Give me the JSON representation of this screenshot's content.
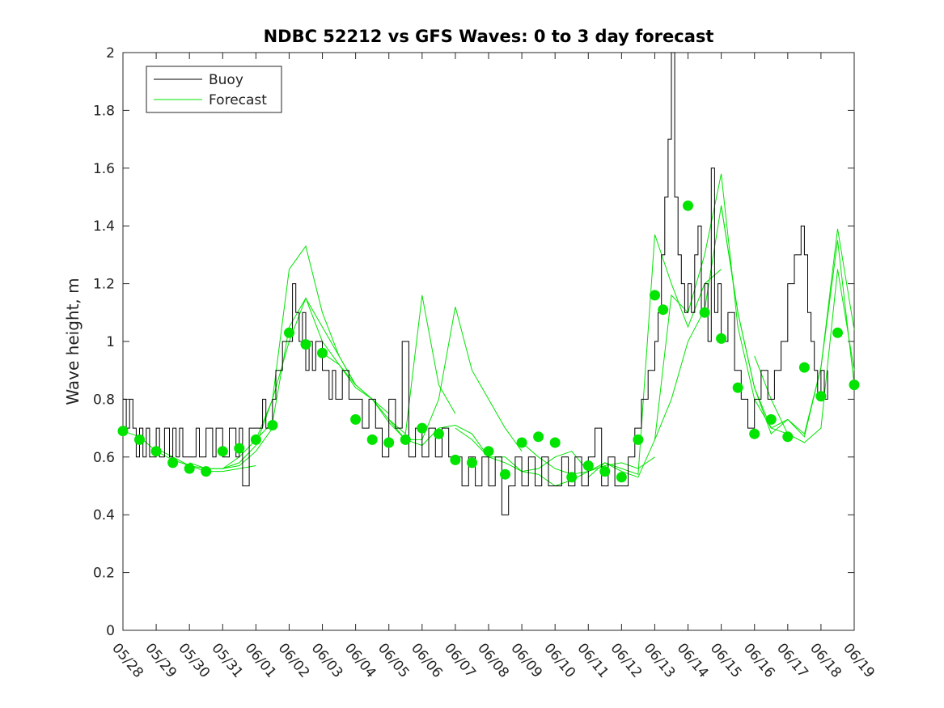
{
  "chart_data": {
    "type": "line",
    "title": "NDBC 52212 vs GFS Waves: 0 to 3 day forecast",
    "xlabel": "",
    "ylabel": "Wave height, m",
    "x_tick_labels": [
      "05/28",
      "05/29",
      "05/30",
      "05/31",
      "06/01",
      "06/02",
      "06/03",
      "06/04",
      "06/05",
      "06/06",
      "06/07",
      "06/08",
      "06/09",
      "06/10",
      "06/11",
      "06/12",
      "06/13",
      "06/14",
      "06/15",
      "06/16",
      "06/17",
      "06/18",
      "06/19"
    ],
    "xlim": [
      0,
      22
    ],
    "ylim": [
      0,
      2
    ],
    "y_ticks": [
      "0",
      "0.2",
      "0.4",
      "0.6",
      "0.8",
      "1",
      "1.2",
      "1.4",
      "1.6",
      "1.8",
      "2"
    ],
    "grid": false,
    "legend": {
      "position": "top-left",
      "entries": [
        "Buoy",
        "Forecast"
      ]
    },
    "colors": {
      "buoy": "#000000",
      "forecast": "#00e400",
      "markers": "#00e400"
    },
    "series": [
      {
        "name": "Buoy",
        "x": [
          0,
          0.1,
          0.2,
          0.3,
          0.4,
          0.5,
          0.6,
          0.7,
          0.8,
          1.0,
          1.1,
          1.25,
          1.4,
          1.5,
          1.6,
          1.7,
          1.8,
          2.0,
          2.2,
          2.3,
          2.5,
          2.7,
          2.8,
          3.0,
          3.2,
          3.4,
          3.5,
          3.6,
          3.8,
          4.0,
          4.2,
          4.3,
          4.5,
          4.6,
          4.8,
          5.0,
          5.1,
          5.2,
          5.3,
          5.4,
          5.5,
          5.6,
          5.7,
          5.8,
          6.0,
          6.2,
          6.3,
          6.4,
          6.5,
          6.6,
          6.8,
          7.0,
          7.2,
          7.4,
          7.6,
          7.8,
          8.0,
          8.2,
          8.4,
          8.6,
          8.8,
          9.0,
          9.2,
          9.4,
          9.6,
          9.8,
          10.0,
          10.2,
          10.4,
          10.6,
          10.8,
          11.0,
          11.2,
          11.4,
          11.6,
          11.8,
          12.0,
          12.2,
          12.4,
          12.6,
          12.8,
          13.0,
          13.2,
          13.4,
          13.6,
          13.8,
          14.0,
          14.2,
          14.4,
          14.6,
          14.8,
          15.0,
          15.2,
          15.4,
          15.6,
          15.8,
          16.0,
          16.1,
          16.2,
          16.3,
          16.4,
          16.5,
          16.6,
          16.7,
          16.8,
          16.9,
          17.0,
          17.1,
          17.2,
          17.3,
          17.4,
          17.5,
          17.6,
          17.7,
          17.8,
          17.9,
          18.0,
          18.2,
          18.4,
          18.6,
          18.8,
          19.0,
          19.2,
          19.4,
          19.6,
          19.8,
          20.0,
          20.2,
          20.4,
          20.5,
          20.6,
          20.7,
          20.8,
          20.9,
          21.0,
          21.1,
          21.2
        ],
        "values": [
          0.8,
          0.7,
          0.8,
          0.7,
          0.6,
          0.7,
          0.6,
          0.7,
          0.6,
          0.7,
          0.6,
          0.7,
          0.6,
          0.7,
          0.6,
          0.7,
          0.6,
          0.6,
          0.7,
          0.6,
          0.7,
          0.6,
          0.7,
          0.6,
          0.7,
          0.6,
          0.7,
          0.5,
          0.7,
          0.7,
          0.8,
          0.7,
          0.8,
          0.9,
          1.0,
          1.0,
          1.2,
          1.1,
          1.0,
          1.1,
          0.9,
          1.0,
          0.9,
          1.0,
          0.9,
          0.8,
          0.9,
          0.8,
          0.8,
          0.9,
          0.8,
          0.8,
          0.7,
          0.8,
          0.7,
          0.6,
          0.8,
          0.7,
          1.0,
          0.6,
          0.7,
          0.6,
          0.7,
          0.6,
          0.7,
          0.6,
          0.6,
          0.5,
          0.6,
          0.5,
          0.6,
          0.5,
          0.6,
          0.4,
          0.5,
          0.6,
          0.5,
          0.6,
          0.5,
          0.6,
          0.5,
          0.5,
          0.6,
          0.5,
          0.6,
          0.5,
          0.6,
          0.7,
          0.5,
          0.6,
          0.5,
          0.5,
          0.6,
          0.7,
          0.8,
          0.9,
          1.0,
          1.1,
          1.3,
          1.5,
          1.7,
          2.0,
          1.5,
          1.3,
          1.2,
          1.1,
          1.2,
          1.1,
          1.3,
          1.4,
          1.1,
          1.2,
          1.0,
          1.6,
          1.1,
          1.2,
          1.0,
          1.1,
          0.9,
          0.8,
          0.7,
          0.8,
          0.9,
          0.8,
          0.9,
          1.0,
          1.2,
          1.3,
          1.4,
          1.3,
          1.1,
          1.0,
          0.9,
          0.8,
          0.9,
          0.8,
          0.9
        ]
      },
      {
        "name": "Forecast",
        "runs": [
          {
            "x": [
              0,
              0.5,
              1,
              1.5,
              2,
              2.5,
              3,
              3.5,
              4
            ],
            "values": [
              0.69,
              0.67,
              0.62,
              0.59,
              0.57,
              0.55,
              0.55,
              0.56,
              0.57
            ]
          },
          {
            "x": [
              1,
              1.5,
              2,
              2.5,
              3,
              3.5,
              4,
              4.5
            ],
            "values": [
              0.63,
              0.6,
              0.57,
              0.56,
              0.56,
              0.57,
              0.62,
              0.7
            ]
          },
          {
            "x": [
              2,
              2.5,
              3,
              3.5,
              4,
              4.5,
              5,
              5.5,
              6,
              6.5,
              7
            ],
            "values": [
              0.58,
              0.56,
              0.56,
              0.6,
              0.66,
              0.8,
              1.0,
              1.15,
              1.05,
              0.95,
              0.85
            ]
          },
          {
            "x": [
              3,
              3.5,
              4,
              4.5,
              5,
              5.5,
              6,
              6.5,
              7,
              7.5,
              8
            ],
            "values": [
              0.56,
              0.58,
              0.64,
              0.8,
              1.25,
              1.33,
              1.1,
              0.95,
              0.85,
              0.8,
              0.75
            ]
          },
          {
            "x": [
              4,
              4.5,
              5,
              5.5,
              6,
              6.5,
              7,
              7.5,
              8,
              8.5,
              9,
              9.5,
              10
            ],
            "values": [
              0.66,
              0.72,
              1.05,
              1.15,
              1.0,
              0.92,
              0.85,
              0.8,
              0.73,
              0.68,
              1.16,
              0.85,
              0.75
            ]
          },
          {
            "x": [
              6,
              6.5,
              7,
              7.5,
              8,
              8.5,
              9,
              9.5,
              10,
              10.5,
              11,
              11.5,
              12
            ],
            "values": [
              0.96,
              0.92,
              0.84,
              0.8,
              0.72,
              0.66,
              0.66,
              0.8,
              1.12,
              0.9,
              0.8,
              0.7,
              0.62
            ]
          },
          {
            "x": [
              8,
              8.5,
              9,
              9.5,
              10,
              10.5,
              11,
              11.5,
              12,
              12.5,
              13,
              13.5,
              14
            ],
            "values": [
              0.73,
              0.66,
              0.64,
              0.7,
              0.71,
              0.68,
              0.6,
              0.58,
              0.55,
              0.56,
              0.6,
              0.62,
              0.55
            ]
          },
          {
            "x": [
              10,
              10.5,
              11,
              11.5,
              12,
              12.5,
              13,
              13.5,
              14,
              14.5,
              15,
              15.5,
              16
            ],
            "values": [
              0.7,
              0.66,
              0.6,
              0.6,
              0.55,
              0.54,
              0.5,
              0.52,
              0.55,
              0.57,
              0.58,
              0.56,
              0.6
            ]
          },
          {
            "x": [
              12,
              12.5,
              13,
              13.5,
              14,
              14.5,
              15,
              15.5,
              16,
              16.5,
              17,
              17.5,
              18
            ],
            "values": [
              0.65,
              0.6,
              0.56,
              0.54,
              0.55,
              0.58,
              0.56,
              0.54,
              1.37,
              1.2,
              1.05,
              1.2,
              1.25
            ]
          },
          {
            "x": [
              14,
              14.5,
              15,
              15.5,
              16,
              16.5,
              17,
              17.5,
              18,
              18.5,
              19,
              19.5,
              20
            ],
            "values": [
              0.53,
              0.58,
              0.55,
              0.53,
              0.66,
              1.16,
              1.1,
              1.3,
              1.58,
              1.05,
              0.8,
              0.7,
              0.68
            ]
          },
          {
            "x": [
              16,
              16.5,
              17,
              17.5,
              18,
              18.5,
              19,
              19.5,
              20,
              20.5,
              21,
              21.5,
              22
            ],
            "values": [
              0.66,
              0.8,
              1.0,
              1.11,
              1.47,
              1.1,
              0.84,
              0.7,
              0.73,
              0.68,
              0.91,
              1.39,
              1.04
            ]
          },
          {
            "x": [
              18,
              18.5,
              19,
              19.5,
              20,
              20.5,
              21,
              21.5,
              22
            ],
            "values": [
              1.47,
              1.1,
              0.84,
              0.68,
              0.73,
              0.67,
              0.91,
              1.35,
              0.85
            ]
          },
          {
            "x": [
              19,
              19.5,
              20,
              20.5,
              21,
              21.5,
              22
            ],
            "values": [
              0.95,
              0.8,
              0.68,
              0.65,
              0.7,
              1.25,
              0.9
            ]
          }
        ],
        "markers": {
          "x": [
            0,
            0.5,
            1,
            1.5,
            2,
            2.5,
            3,
            3.5,
            4,
            4.5,
            5,
            5.5,
            6,
            7,
            7.5,
            8,
            8.5,
            9,
            9.5,
            10,
            10.5,
            11,
            11.5,
            12,
            12.5,
            13,
            13.5,
            14,
            14.5,
            15,
            15.5,
            16,
            16.25,
            17,
            17.5,
            18,
            18.5,
            19,
            19.5,
            20,
            20.5,
            21,
            21.5,
            22
          ],
          "values": [
            0.69,
            0.66,
            0.62,
            0.58,
            0.56,
            0.55,
            0.62,
            0.63,
            0.66,
            0.71,
            1.03,
            0.99,
            0.96,
            0.73,
            0.66,
            0.65,
            0.66,
            0.7,
            0.68,
            0.59,
            0.58,
            0.62,
            0.54,
            0.65,
            0.67,
            0.65,
            0.53,
            0.57,
            0.55,
            0.53,
            0.66,
            1.16,
            1.11,
            1.47,
            1.1,
            1.01,
            0.84,
            0.68,
            0.73,
            0.67,
            0.91,
            0.81,
            1.03,
            0.85
          ]
        }
      }
    ]
  }
}
